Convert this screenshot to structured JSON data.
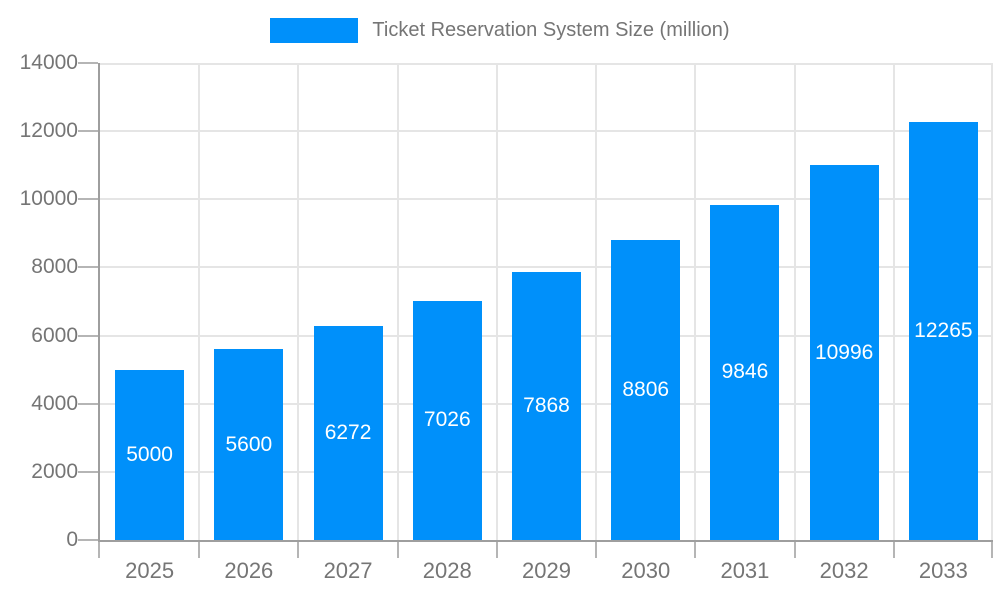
{
  "chart_data": {
    "type": "bar",
    "title": "Ticket Reservation System Size (million)",
    "categories": [
      "2025",
      "2026",
      "2027",
      "2028",
      "2029",
      "2030",
      "2031",
      "2032",
      "2033"
    ],
    "values": [
      5000,
      5600,
      6272,
      7026,
      7868,
      8806,
      9846,
      10996,
      12265
    ],
    "series": [
      {
        "name": "Ticket Reservation System Size (million)",
        "values": [
          5000,
          5600,
          6272,
          7026,
          7868,
          8806,
          9846,
          10996,
          12265
        ]
      }
    ],
    "xlabel": "",
    "ylabel": "",
    "ylim": [
      0,
      14000
    ],
    "ytick_step": 2000,
    "ytick_labels": [
      "0",
      "2000",
      "4000",
      "6000",
      "8000",
      "10000",
      "12000",
      "14000"
    ],
    "grid": true,
    "legend_position": "top",
    "bar_labels_visible": true,
    "colors": {
      "bar": "#0090fa",
      "bar_label_text": "#ffffff",
      "axis_text": "#757575",
      "axis_line": "#9e9e9e",
      "tick_line": "#b5b5b5",
      "gridline": "#e5e5e5",
      "background": "#ffffff"
    }
  }
}
